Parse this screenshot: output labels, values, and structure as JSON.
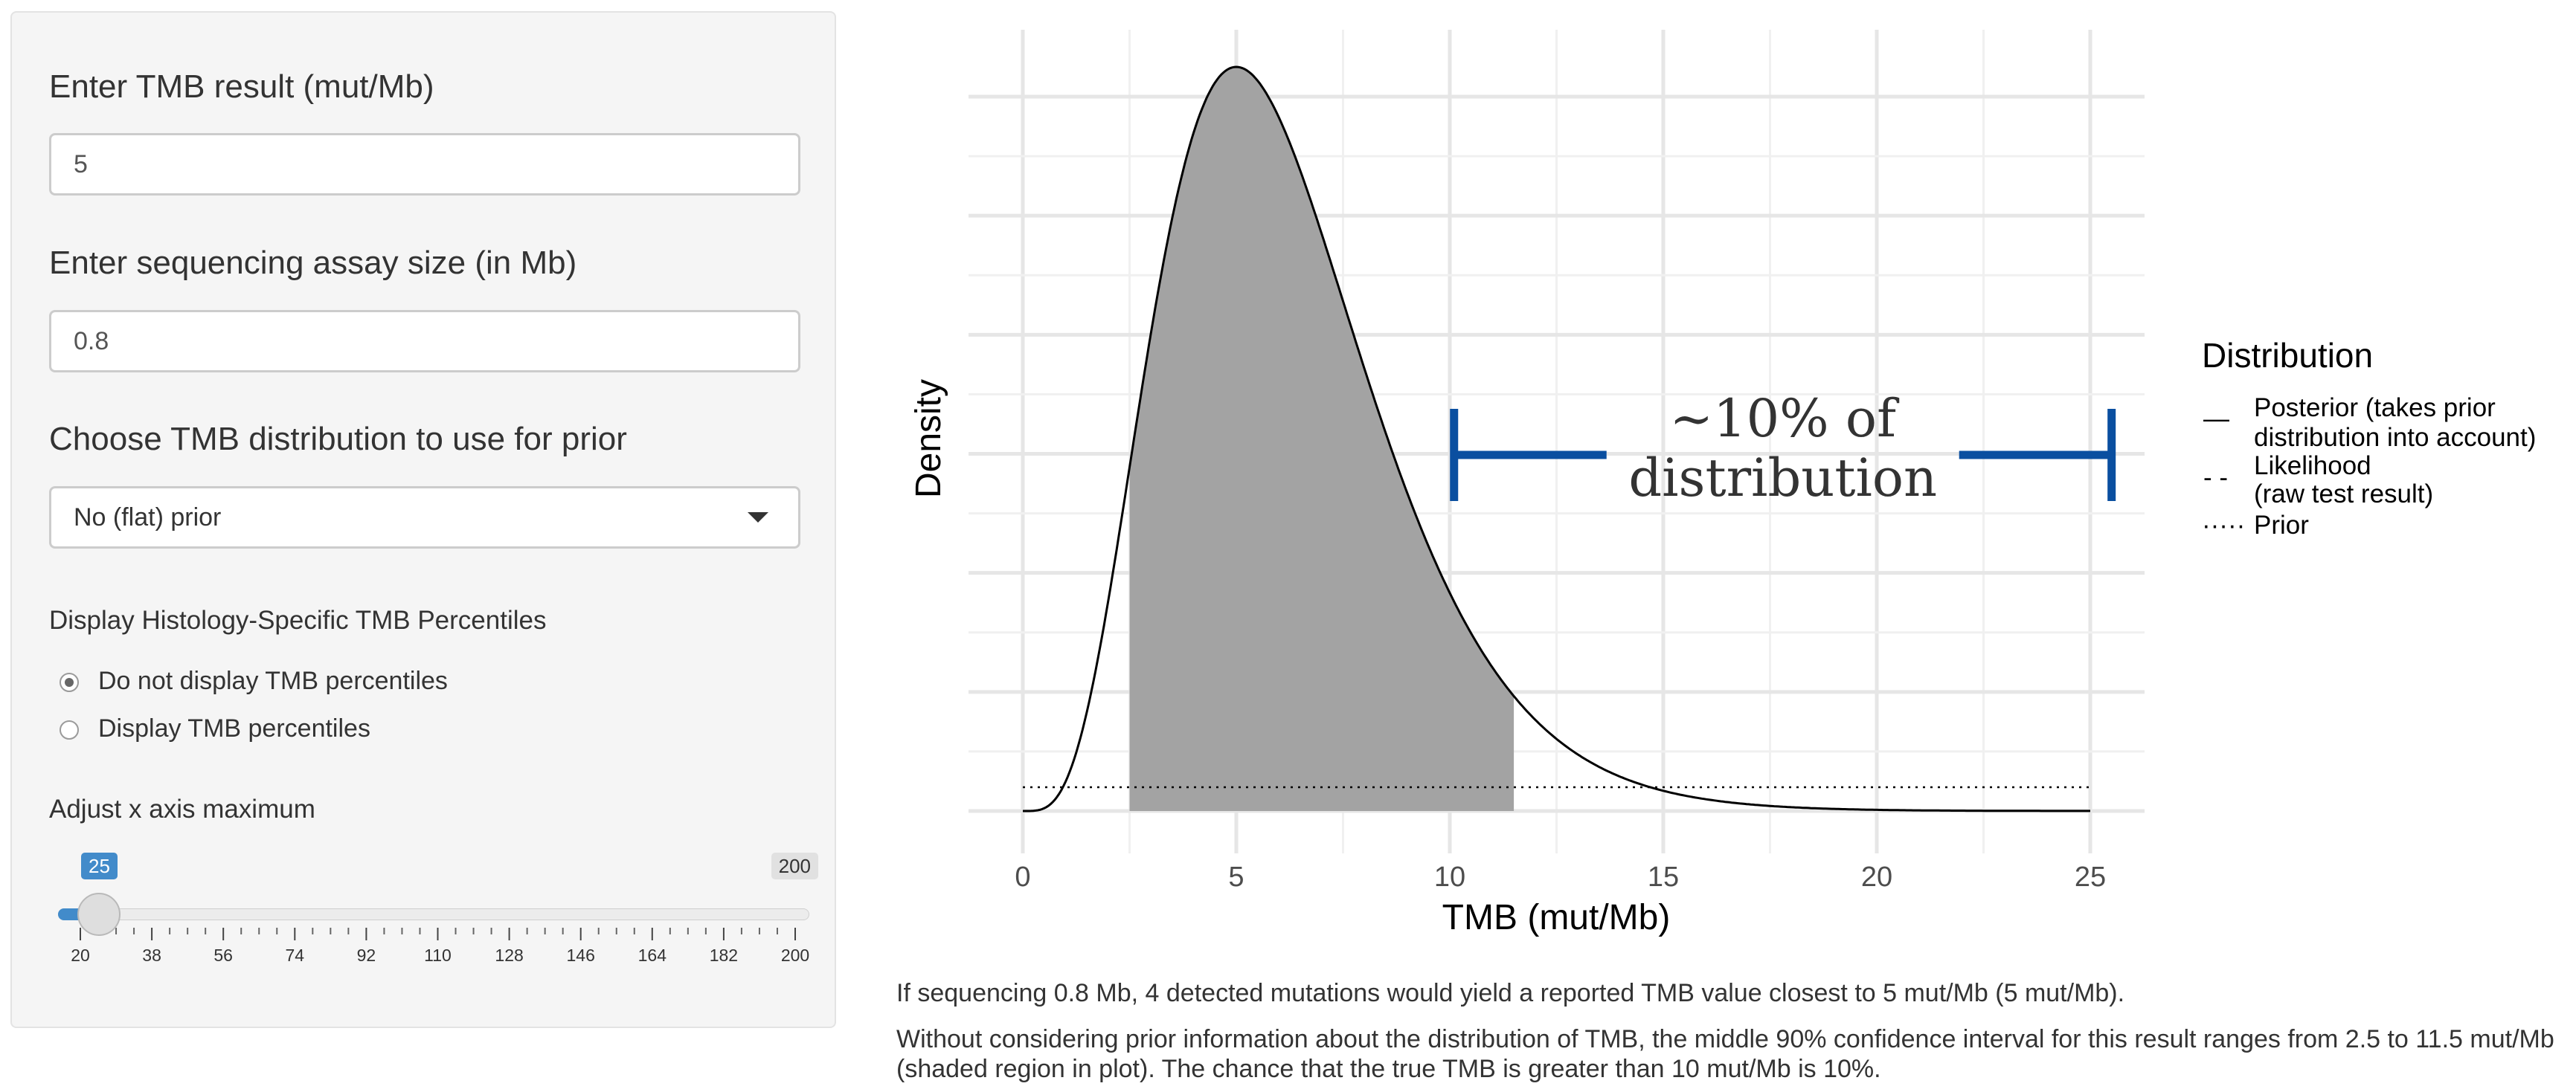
{
  "sidebar": {
    "tmb_label": "Enter TMB result (mut/Mb)",
    "tmb_value": "5",
    "assay_label": "Enter sequencing assay size (in Mb)",
    "assay_value": "0.8",
    "prior_label": "Choose TMB distribution to use for prior",
    "prior_selected": "No (flat) prior",
    "percentile_label": "Display Histology-Specific TMB Percentiles",
    "radio_options": [
      {
        "label": "Do not display TMB percentiles",
        "checked": true
      },
      {
        "label": "Display TMB percentiles",
        "checked": false
      }
    ],
    "xmax_label": "Adjust x axis maximum",
    "slider": {
      "value": "25",
      "max_label": "200",
      "min": 20,
      "max": 200,
      "current": 25,
      "ticks": [
        "20",
        "38",
        "56",
        "74",
        "92",
        "110",
        "128",
        "146",
        "164",
        "182",
        "200"
      ]
    }
  },
  "icons": {
    "dropdown": "chevron-down-icon",
    "slider_handle": "slider-handle-icon"
  },
  "chart_data": {
    "type": "area",
    "xlabel": "TMB (mut/Mb)",
    "ylabel": "Density",
    "xlim": [
      0,
      25
    ],
    "x_ticks": [
      "0",
      "5",
      "10",
      "15",
      "20",
      "25"
    ],
    "grid": true,
    "shaded_interval": [
      2.5,
      11.5
    ],
    "posterior_shape": {
      "alpha": 5,
      "rate": 0.8
    },
    "prior_level_fraction": 0.032,
    "legend": {
      "title": "Distribution",
      "placement": "right",
      "items": [
        {
          "symbol": "—",
          "line1": "Posterior (takes prior",
          "line2": "distribution into account)",
          "style": "solid"
        },
        {
          "symbol": "- -",
          "line1": "Likelihood",
          "line2": "(raw test result)",
          "style": "dashed"
        },
        {
          "symbol": "·····",
          "line1": "Prior",
          "line2": "",
          "style": "dotted"
        }
      ]
    },
    "annotation": {
      "line1": "~10% of",
      "line2": "distribution",
      "span": [
        10.1,
        25.5
      ],
      "color": "#0a4fa0"
    },
    "colors": {
      "shaded": "#a3a3a3",
      "grid": "#ebebeb",
      "curve": "#000000"
    }
  },
  "results": {
    "sentence1": "If sequencing 0.8 Mb, 4 detected mutations would yield a reported TMB value closest to 5 mut/Mb (5 mut/Mb).",
    "sentence2": "Without considering prior information about the distribution of TMB, the middle 90% confidence interval for this result ranges from 2.5 to 11.5 mut/Mb (shaded region in plot). The chance that the true TMB is greater than 10 mut/Mb is 10%."
  }
}
